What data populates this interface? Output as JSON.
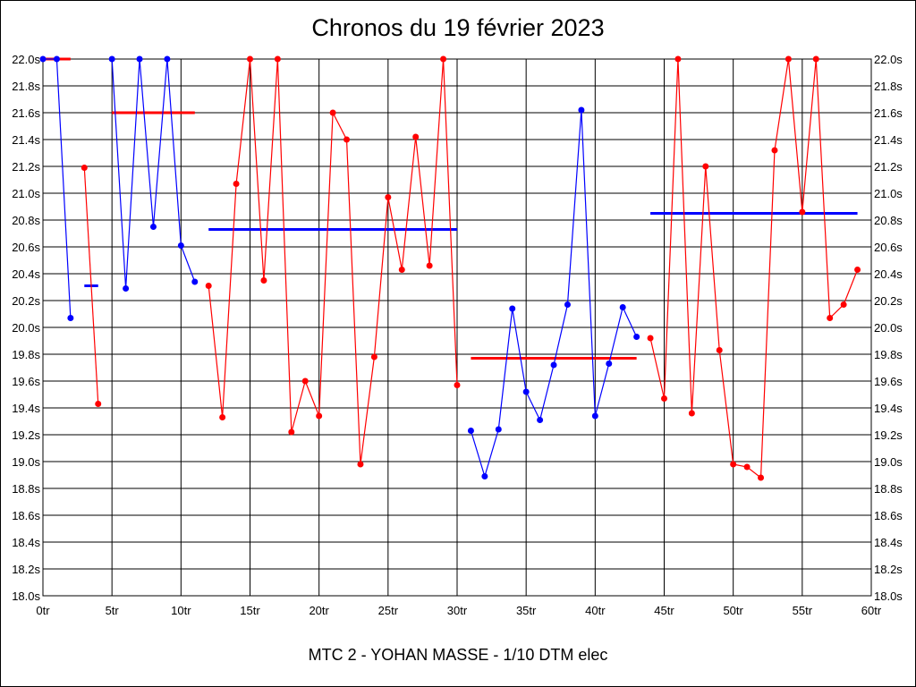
{
  "chart_data": {
    "type": "line",
    "title": "Chronos du 19 février 2023",
    "footer": "MTC 2 - YOHAN MASSE - 1/10 DTM elec",
    "xlim": [
      0,
      60
    ],
    "ylim": [
      18.0,
      22.0
    ],
    "x_tick_step": 5,
    "y_tick_step": 0.2,
    "x_tick_suffix": "tr",
    "y_tick_suffix": "s",
    "grid": true,
    "colors": {
      "blue": "#0000ff",
      "red": "#ff0000",
      "grid": "#000000"
    },
    "stints": [
      {
        "color": "blue",
        "laps": [
          0,
          1,
          2
        ],
        "times": [
          22.0,
          22.0,
          20.07
        ],
        "average": 22.0,
        "average_color": "red"
      },
      {
        "color": "red",
        "laps": [
          3,
          4
        ],
        "times": [
          21.19,
          19.43
        ],
        "average": 20.31,
        "average_color": "blue"
      },
      {
        "color": "blue",
        "laps": [
          5,
          6,
          7,
          8,
          9,
          10,
          11
        ],
        "times": [
          22.0,
          20.29,
          22.0,
          20.75,
          22.0,
          20.61,
          20.34
        ],
        "average": 21.6,
        "average_color": "red"
      },
      {
        "color": "red",
        "laps": [
          12,
          13,
          14,
          15,
          16,
          17,
          18,
          19,
          20,
          21,
          22,
          23,
          24,
          25,
          26,
          27,
          28,
          29,
          30
        ],
        "times": [
          20.31,
          19.33,
          21.07,
          22.0,
          20.35,
          22.0,
          19.22,
          19.6,
          19.34,
          21.6,
          21.4,
          18.98,
          19.78,
          20.97,
          20.43,
          21.42,
          20.46,
          22.0,
          19.57
        ],
        "average": 20.73,
        "average_color": "blue"
      },
      {
        "color": "blue",
        "laps": [
          31,
          32,
          33,
          34,
          35,
          36,
          37,
          38,
          39,
          40,
          41,
          42,
          43
        ],
        "times": [
          19.23,
          18.89,
          19.24,
          20.14,
          19.52,
          19.31,
          19.72,
          20.17,
          21.62,
          19.34,
          19.73,
          20.15,
          19.93
        ],
        "average": 19.77,
        "average_color": "red"
      },
      {
        "color": "red",
        "laps": [
          44,
          45,
          46,
          47,
          48,
          49,
          50,
          51,
          52,
          53,
          54,
          55,
          56,
          57,
          58,
          59
        ],
        "times": [
          19.92,
          19.47,
          22.0,
          19.36,
          21.2,
          19.83,
          18.98,
          18.96,
          18.88,
          21.32,
          22.0,
          20.86,
          22.0,
          20.07,
          20.17,
          20.43
        ],
        "average": 20.85,
        "average_color": "blue"
      }
    ]
  }
}
